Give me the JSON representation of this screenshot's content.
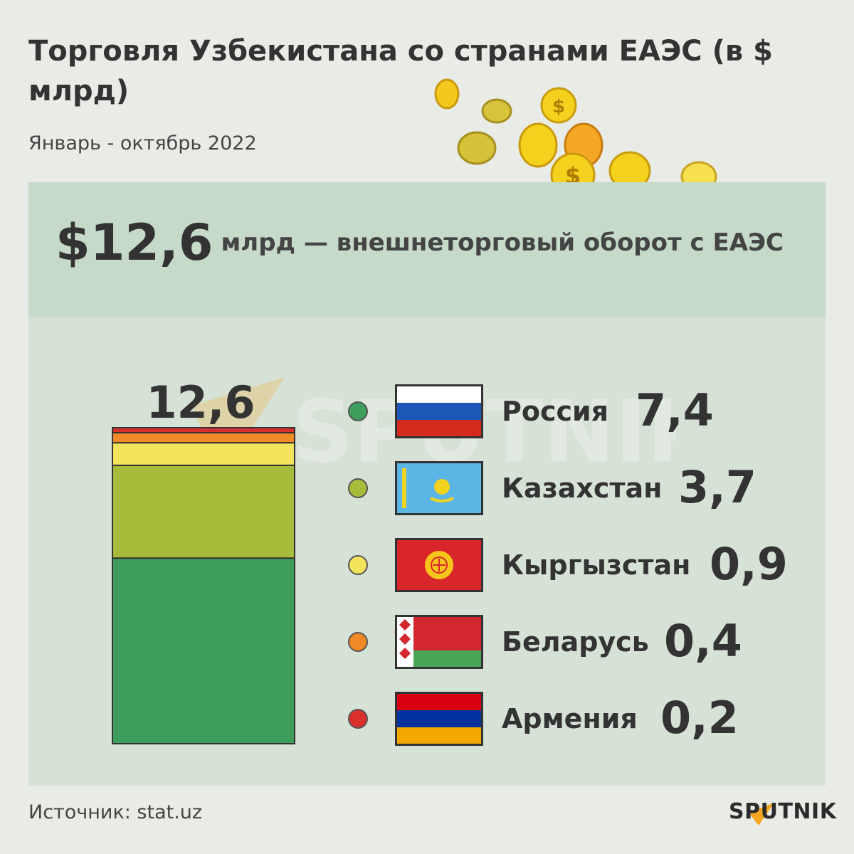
{
  "title": "Торговля Узбекистана со странами ЕАЭС (в $ млрд)",
  "subtitle": "Январь - октябрь 2022",
  "headline": {
    "value": "$12,6",
    "text": "млрд — внешнеторговый оборот с ЕАЭС"
  },
  "source": "Источник: stat.uz",
  "brand": "SPUTNIK",
  "colors": {
    "russia": "#3f9e5c",
    "kazakhstan": "#a8bc3c",
    "kyrgyzstan": "#f2e35c",
    "belarus": "#f08a26",
    "armenia": "#d9302e"
  },
  "chart_data": {
    "type": "bar",
    "stacked": true,
    "categories": [
      "Россия",
      "Казахстан",
      "Кыргызстан",
      "Беларусь",
      "Армения"
    ],
    "values": [
      7.4,
      3.7,
      0.9,
      0.4,
      0.2
    ],
    "value_labels": [
      "7,4",
      "3,7",
      "0,9",
      "0,4",
      "0,2"
    ],
    "total": 12.6,
    "total_label": "12,6",
    "flag_icons": [
      "russia-flag-icon",
      "kazakhstan-flag-icon",
      "kyrgyzstan-flag-icon",
      "belarus-flag-icon",
      "armenia-flag-icon"
    ],
    "legend_position": "right"
  }
}
